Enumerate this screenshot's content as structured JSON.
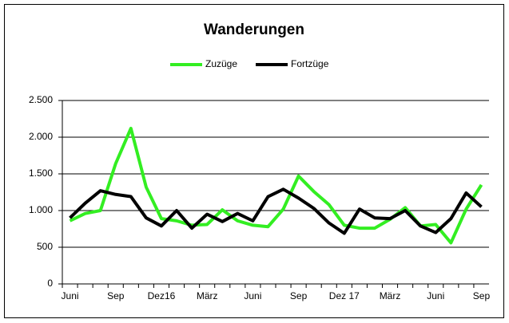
{
  "chart_data": {
    "type": "line",
    "title": "Wanderungen",
    "categories": [
      "Juni",
      null,
      null,
      "Sep",
      null,
      null,
      "Dez16",
      null,
      null,
      "März",
      null,
      null,
      "Juni",
      null,
      null,
      "Sep",
      null,
      null,
      "Dez 17",
      null,
      null,
      "März",
      null,
      null,
      "Juni",
      null,
      null,
      "Sep"
    ],
    "series": [
      {
        "name": "Zuzüge",
        "color": "#33ee22",
        "values": [
          860,
          960,
          1000,
          1640,
          2120,
          1320,
          890,
          860,
          800,
          810,
          1010,
          860,
          800,
          780,
          1020,
          1470,
          1260,
          1080,
          800,
          760,
          760,
          880,
          1040,
          790,
          810,
          560,
          1020,
          1350
        ]
      },
      {
        "name": "Fortzüge",
        "color": "#000000",
        "values": [
          900,
          1100,
          1270,
          1220,
          1190,
          900,
          790,
          1000,
          760,
          950,
          850,
          960,
          860,
          1190,
          1290,
          1170,
          1030,
          830,
          690,
          1020,
          900,
          890,
          1000,
          790,
          700,
          890,
          1240,
          1050
        ]
      }
    ],
    "ylim": [
      0,
      2500
    ],
    "yticks": [
      0,
      500,
      {
        "value": 1000,
        "label": "1.000"
      },
      {
        "value": 1500,
        "label": "1.500"
      },
      {
        "value": 2000,
        "label": "2.000"
      },
      {
        "value": 2500,
        "label": "2.500"
      }
    ],
    "grid": true,
    "legend": "top"
  }
}
